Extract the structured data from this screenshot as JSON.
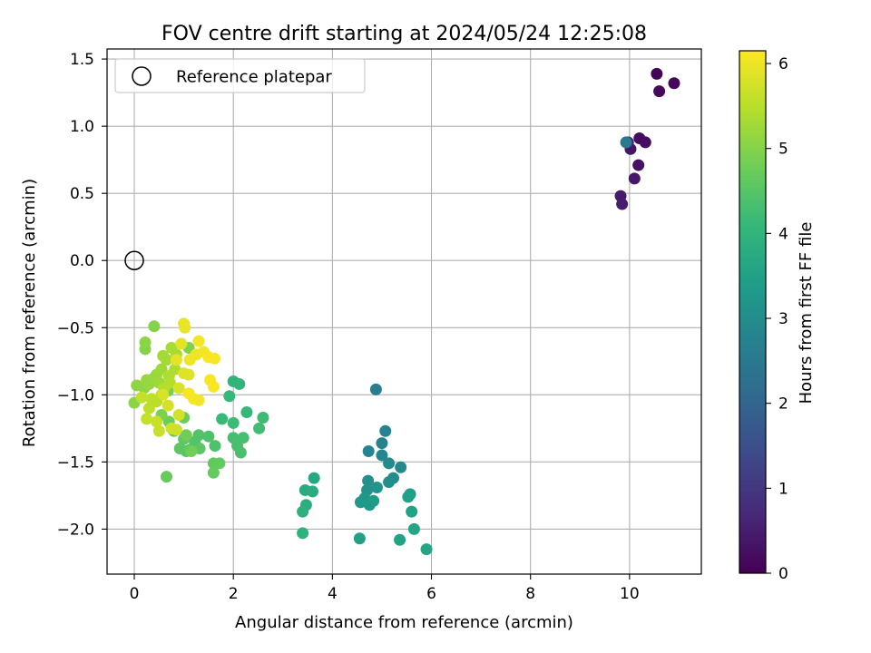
{
  "chart_data": {
    "type": "scatter",
    "title": "FOV centre drift starting at 2024/05/24 12:25:08",
    "xlabel": "Angular distance from reference (arcmin)",
    "ylabel": "Rotation from reference (arcmin)",
    "xlim": [
      -0.55,
      11.45
    ],
    "ylim": [
      -2.335,
      1.575
    ],
    "xticks": [
      "0",
      "2",
      "4",
      "6",
      "8",
      "10"
    ],
    "xtick_values": [
      0,
      2,
      4,
      6,
      8,
      10
    ],
    "yticks": [
      "1.5",
      "1.0",
      "0.5",
      "0.0",
      "−0.5",
      "−1.0",
      "−1.5",
      "−2.0"
    ],
    "ytick_values": [
      1.5,
      1.0,
      0.5,
      0.0,
      -0.5,
      -1.0,
      -1.5,
      -2.0
    ],
    "grid": true,
    "legend": {
      "placement": "upper-left",
      "entries": [
        "Reference platepar"
      ]
    },
    "reference_point": {
      "x": 0.0,
      "y": 0.0
    },
    "colorbar": {
      "label": "Hours from first FF file",
      "range": [
        0,
        6.15
      ],
      "ticks": [
        "0",
        "1",
        "2",
        "3",
        "4",
        "5",
        "6"
      ],
      "tick_values": [
        0,
        1,
        2,
        3,
        4,
        5,
        6
      ],
      "colormap": "viridis",
      "colors": [
        "#440154",
        "#482878",
        "#3e4989",
        "#31688e",
        "#26828e",
        "#1f9e89",
        "#35b779",
        "#6ece58",
        "#b5de2b",
        "#fde725"
      ]
    },
    "points": [
      [
        10.55,
        1.39,
        0.05
      ],
      [
        10.9,
        1.32,
        0.1
      ],
      [
        10.6,
        1.26,
        0.15
      ],
      [
        10.2,
        0.91,
        0.2
      ],
      [
        10.32,
        0.88,
        0.25
      ],
      [
        10.18,
        0.71,
        0.3
      ],
      [
        10.02,
        0.83,
        0.35
      ],
      [
        10.1,
        0.61,
        0.4
      ],
      [
        9.82,
        0.48,
        0.45
      ],
      [
        9.85,
        0.42,
        0.5
      ],
      [
        9.97,
        0.88,
        0.6
      ],
      [
        9.93,
        0.88,
        2.5
      ],
      [
        4.88,
        -0.96,
        2.6
      ],
      [
        5.07,
        -1.27,
        2.7
      ],
      [
        5.0,
        -1.36,
        2.75
      ],
      [
        4.73,
        -1.42,
        2.8
      ],
      [
        5.0,
        -1.45,
        2.85
      ],
      [
        5.38,
        -1.54,
        2.9
      ],
      [
        5.14,
        -1.51,
        2.95
      ],
      [
        5.23,
        -1.62,
        3.0
      ],
      [
        5.14,
        -1.65,
        3.05
      ],
      [
        4.72,
        -1.64,
        3.1
      ],
      [
        4.7,
        -1.71,
        3.15
      ],
      [
        4.9,
        -1.69,
        3.2
      ],
      [
        4.65,
        -1.77,
        3.25
      ],
      [
        4.57,
        -1.8,
        3.3
      ],
      [
        4.75,
        -1.82,
        3.35
      ],
      [
        4.83,
        -1.79,
        3.4
      ],
      [
        5.57,
        -1.74,
        3.45
      ],
      [
        5.53,
        -1.76,
        3.5
      ],
      [
        5.6,
        -1.87,
        3.55
      ],
      [
        5.65,
        -2.0,
        3.6
      ],
      [
        4.55,
        -2.07,
        3.5
      ],
      [
        5.36,
        -2.08,
        3.55
      ],
      [
        5.9,
        -2.15,
        3.6
      ],
      [
        3.63,
        -1.62,
        3.7
      ],
      [
        3.45,
        -1.71,
        3.75
      ],
      [
        3.6,
        -1.72,
        3.8
      ],
      [
        3.47,
        -1.82,
        3.85
      ],
      [
        3.4,
        -1.87,
        3.9
      ],
      [
        3.4,
        -2.03,
        3.95
      ],
      [
        2.0,
        -0.9,
        4.0
      ],
      [
        2.12,
        -0.92,
        4.05
      ],
      [
        1.92,
        -1.01,
        4.1
      ],
      [
        2.27,
        -1.13,
        4.1
      ],
      [
        1.77,
        -1.18,
        4.15
      ],
      [
        2.0,
        -1.21,
        4.2
      ],
      [
        2.6,
        -1.17,
        4.2
      ],
      [
        2.52,
        -1.25,
        4.25
      ],
      [
        2.0,
        -1.32,
        4.3
      ],
      [
        2.2,
        -1.32,
        4.3
      ],
      [
        2.08,
        -1.38,
        4.35
      ],
      [
        2.15,
        -1.43,
        4.35
      ],
      [
        1.63,
        -1.38,
        4.4
      ],
      [
        1.5,
        -1.31,
        4.4
      ],
      [
        1.3,
        -1.3,
        4.45
      ],
      [
        1.22,
        -1.35,
        4.45
      ],
      [
        1.05,
        -1.42,
        4.5
      ],
      [
        1.12,
        -1.41,
        4.5
      ],
      [
        0.92,
        -1.4,
        4.55
      ],
      [
        1.32,
        -1.4,
        4.55
      ],
      [
        1.0,
        -1.33,
        4.6
      ],
      [
        1.6,
        -1.51,
        4.6
      ],
      [
        1.72,
        -1.51,
        4.65
      ],
      [
        1.6,
        -1.58,
        4.65
      ],
      [
        0.65,
        -1.61,
        4.7
      ],
      [
        0.8,
        -1.27,
        4.7
      ],
      [
        0.7,
        -1.2,
        4.75
      ],
      [
        1.0,
        -1.17,
        4.75
      ],
      [
        1.05,
        -1.3,
        4.8
      ],
      [
        1.15,
        -1.42,
        4.8
      ],
      [
        0.55,
        -1.15,
        4.9
      ],
      [
        0.68,
        -0.97,
        4.9
      ],
      [
        1.1,
        -0.65,
        4.95
      ],
      [
        0.4,
        -0.49,
        5.0
      ],
      [
        0.22,
        -0.66,
        5.0
      ],
      [
        0.22,
        -0.61,
        5.05
      ],
      [
        0.0,
        -1.06,
        5.05
      ],
      [
        0.05,
        -0.93,
        5.1
      ],
      [
        0.2,
        -0.95,
        5.1
      ],
      [
        0.25,
        -0.89,
        5.15
      ],
      [
        0.3,
        -0.92,
        5.15
      ],
      [
        0.45,
        -0.85,
        5.2
      ],
      [
        0.38,
        -0.88,
        5.2
      ],
      [
        0.55,
        -0.81,
        5.25
      ],
      [
        0.5,
        -0.91,
        5.25
      ],
      [
        0.65,
        -0.74,
        5.3
      ],
      [
        0.58,
        -0.71,
        5.3
      ],
      [
        0.75,
        -0.65,
        5.35
      ],
      [
        0.85,
        -0.7,
        5.35
      ],
      [
        0.82,
        -0.81,
        5.4
      ],
      [
        0.7,
        -0.86,
        5.4
      ],
      [
        0.72,
        -0.91,
        5.45
      ],
      [
        0.6,
        -0.95,
        5.45
      ],
      [
        0.55,
        -1.0,
        5.5
      ],
      [
        0.45,
        -1.05,
        5.5
      ],
      [
        0.35,
        -1.03,
        5.55
      ],
      [
        0.3,
        -1.1,
        5.55
      ],
      [
        0.15,
        -1.02,
        5.6
      ],
      [
        0.25,
        -1.18,
        5.6
      ],
      [
        0.45,
        -1.2,
        5.65
      ],
      [
        0.5,
        -1.27,
        5.65
      ],
      [
        0.75,
        -1.25,
        5.7
      ],
      [
        0.85,
        -1.26,
        5.7
      ],
      [
        0.9,
        -1.15,
        5.75
      ],
      [
        0.68,
        -1.08,
        5.75
      ],
      [
        0.58,
        -1.0,
        5.8
      ],
      [
        0.9,
        -0.95,
        5.8
      ],
      [
        1.0,
        -0.84,
        5.85
      ],
      [
        1.1,
        -0.85,
        5.85
      ],
      [
        0.85,
        -0.74,
        5.9
      ],
      [
        0.95,
        -0.62,
        5.9
      ],
      [
        1.0,
        -0.47,
        5.95
      ],
      [
        1.02,
        -0.5,
        5.95
      ],
      [
        1.12,
        -0.74,
        6.0
      ],
      [
        1.25,
        -0.7,
        6.0
      ],
      [
        1.3,
        -0.6,
        6.05
      ],
      [
        1.4,
        -0.68,
        6.05
      ],
      [
        1.5,
        -0.72,
        6.1
      ],
      [
        1.62,
        -0.73,
        6.1
      ],
      [
        1.53,
        -0.89,
        6.1
      ],
      [
        1.6,
        -0.94,
        6.1
      ],
      [
        1.1,
        -0.99,
        6.1
      ],
      [
        1.2,
        -1.03,
        6.1
      ],
      [
        1.3,
        -1.04,
        6.05
      ]
    ]
  }
}
